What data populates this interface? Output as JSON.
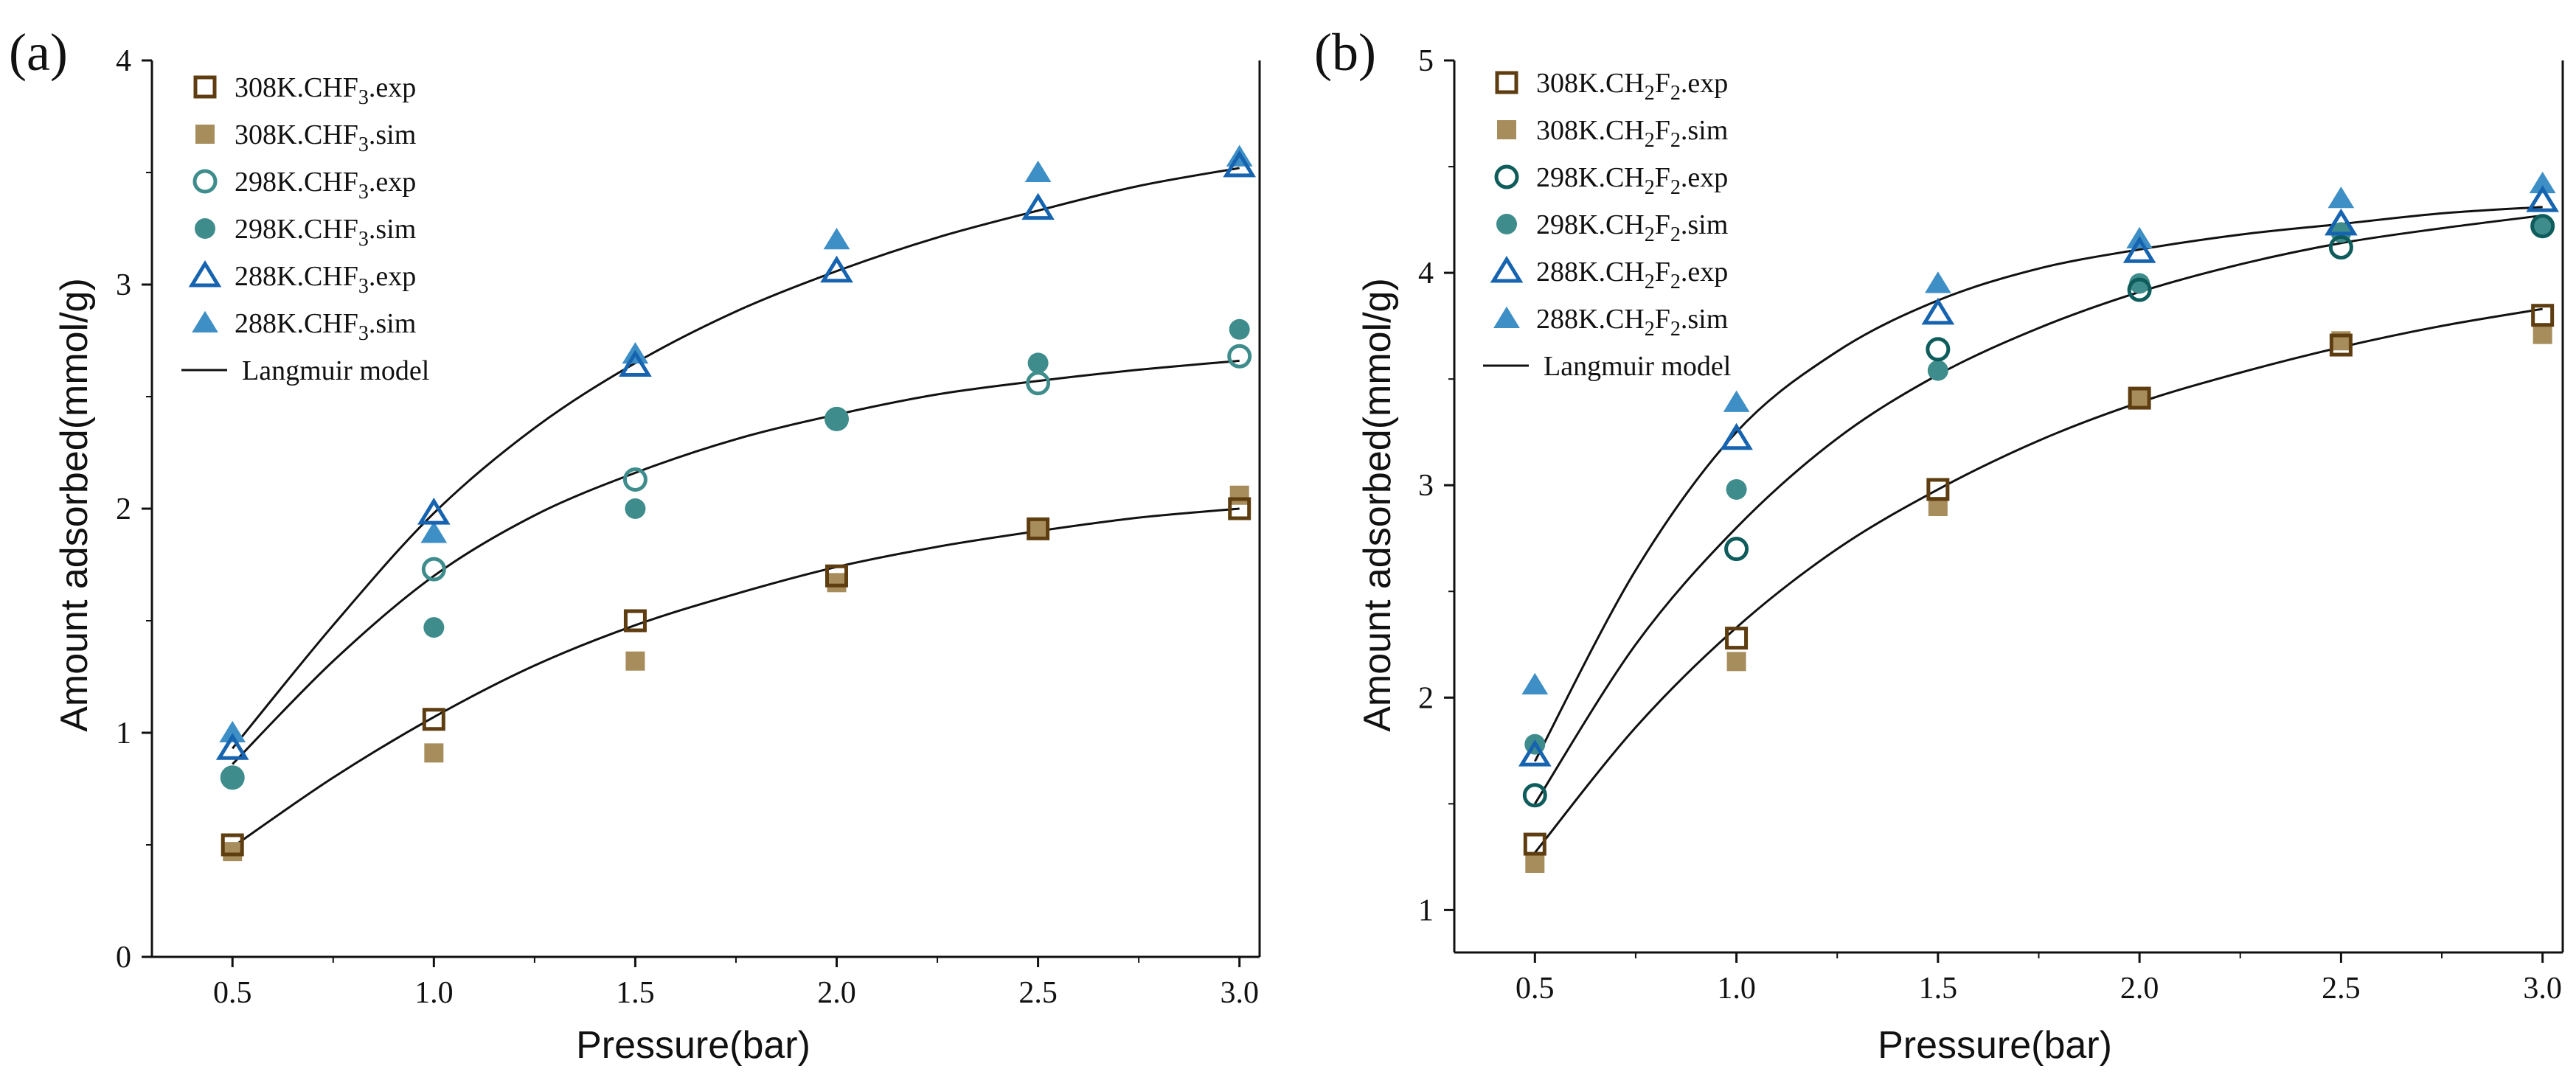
{
  "colors": {
    "exp308": "#5e3d10",
    "sim308": "#a88d5c",
    "exp298": "#0e5c5c",
    "sim298": "#3e8c8c",
    "exp288": "#1664b0",
    "sim288": "#3f8fc7",
    "model": "#111111",
    "axis": "#111111"
  },
  "chart_data": [
    {
      "type": "scatter",
      "panel_label": "(a)",
      "xlabel": "Pressure(bar)",
      "ylabel": "Amount adsorbed(mmol/g)",
      "xlim": [
        0.3,
        3.05
      ],
      "ylim": [
        0,
        4
      ],
      "xticks": [
        0.5,
        1.0,
        1.5,
        2.0,
        2.5,
        3.0
      ],
      "xtick_labels": [
        "0.5",
        "1.0",
        "1.5",
        "2.0",
        "2.5",
        "3.0"
      ],
      "yticks": [
        0,
        1,
        2,
        3,
        4
      ],
      "ytick_labels": [
        "0",
        "1",
        "2",
        "3",
        "4"
      ],
      "legend_position": "top-left",
      "series": [
        {
          "name": "308K.CHF3.exp",
          "label_main": "308K.CHF",
          "label_parts": [
            {
              "text": "3",
              "sub": true
            },
            {
              "text": ".exp",
              "sub": false
            }
          ],
          "marker": "square-open",
          "color": "exp308",
          "x": [
            0.5,
            1.0,
            1.5,
            2.0,
            2.5,
            3.0
          ],
          "y": [
            0.5,
            1.06,
            1.5,
            1.7,
            1.91,
            2.0
          ]
        },
        {
          "name": "308K.CHF3.sim",
          "label_main": "308K.CHF",
          "label_parts": [
            {
              "text": "3",
              "sub": true
            },
            {
              "text": ".sim",
              "sub": false
            }
          ],
          "marker": "square-filled",
          "color": "sim308",
          "x": [
            0.5,
            1.0,
            1.5,
            2.0,
            2.5,
            3.0
          ],
          "y": [
            0.47,
            0.91,
            1.32,
            1.67,
            1.91,
            2.06
          ]
        },
        {
          "name": "298K.CHF3.exp",
          "label_main": "298K.CHF",
          "label_parts": [
            {
              "text": "3",
              "sub": true
            },
            {
              "text": ".exp",
              "sub": false
            }
          ],
          "marker": "circle-open",
          "color": "sim298",
          "x": [
            0.5,
            1.0,
            1.5,
            2.0,
            2.5,
            3.0
          ],
          "y": [
            0.8,
            1.73,
            2.13,
            2.4,
            2.56,
            2.68
          ]
        },
        {
          "name": "298K.CHF3.sim",
          "label_main": "298K.CHF",
          "label_parts": [
            {
              "text": "3",
              "sub": true
            },
            {
              "text": ".sim",
              "sub": false
            }
          ],
          "marker": "circle-filled",
          "color": "sim298",
          "x": [
            0.5,
            1.0,
            1.5,
            2.0,
            2.5,
            3.0
          ],
          "y": [
            0.8,
            1.47,
            2.0,
            2.4,
            2.65,
            2.8
          ]
        },
        {
          "name": "288K.CHF3.exp",
          "label_main": "288K.CHF",
          "label_parts": [
            {
              "text": "3",
              "sub": true
            },
            {
              "text": ".exp",
              "sub": false
            }
          ],
          "marker": "triangle-open",
          "color": "exp288",
          "x": [
            0.5,
            1.0,
            1.5,
            2.0,
            2.5,
            3.0
          ],
          "y": [
            0.93,
            1.98,
            2.64,
            3.06,
            3.34,
            3.53
          ]
        },
        {
          "name": "288K.CHF3.sim",
          "label_main": "288K.CHF",
          "label_parts": [
            {
              "text": "3",
              "sub": true
            },
            {
              "text": ".sim",
              "sub": false
            }
          ],
          "marker": "triangle-filled",
          "color": "sim288",
          "x": [
            0.5,
            1.0,
            1.5,
            2.0,
            2.5,
            3.0
          ],
          "y": [
            1.0,
            1.89,
            2.69,
            3.2,
            3.5,
            3.57
          ]
        }
      ],
      "model_label": "Langmuir model",
      "model_curves": [
        {
          "name": "308K Langmuir",
          "x": [
            0.5,
            0.75,
            1.0,
            1.25,
            1.5,
            1.75,
            2.0,
            2.25,
            2.5,
            2.75,
            3.0
          ],
          "y": [
            0.49,
            0.8,
            1.07,
            1.3,
            1.48,
            1.62,
            1.74,
            1.83,
            1.9,
            1.96,
            2.0
          ]
        },
        {
          "name": "298K Langmuir",
          "x": [
            0.5,
            0.75,
            1.0,
            1.25,
            1.5,
            1.75,
            2.0,
            2.25,
            2.5,
            2.75,
            3.0
          ],
          "y": [
            0.86,
            1.32,
            1.7,
            1.97,
            2.16,
            2.31,
            2.42,
            2.51,
            2.57,
            2.62,
            2.66
          ]
        },
        {
          "name": "288K Langmuir",
          "x": [
            0.5,
            0.75,
            1.0,
            1.25,
            1.5,
            1.75,
            2.0,
            2.25,
            2.5,
            2.75,
            3.0
          ],
          "y": [
            0.93,
            1.48,
            1.98,
            2.36,
            2.65,
            2.88,
            3.06,
            3.21,
            3.33,
            3.44,
            3.52
          ]
        }
      ]
    },
    {
      "type": "scatter",
      "panel_label": "(b)",
      "xlabel": "Pressure(bar)",
      "ylabel": "Amount adsorbed(mmol/g)",
      "xlim": [
        0.3,
        3.05
      ],
      "ylim": [
        0.8,
        5
      ],
      "xticks": [
        0.5,
        1.0,
        1.5,
        2.0,
        2.5,
        3.0
      ],
      "xtick_labels": [
        "0.5",
        "1.0",
        "1.5",
        "2.0",
        "2.5",
        "3.0"
      ],
      "yticks": [
        1,
        2,
        3,
        4,
        5
      ],
      "ytick_labels": [
        "1",
        "2",
        "3",
        "4",
        "5"
      ],
      "legend_position": "top-left",
      "series": [
        {
          "name": "308K.CH2F2.exp",
          "label_main": "308K.CH",
          "label_parts": [
            {
              "text": "2",
              "sub": true
            },
            {
              "text": "F",
              "sub": false
            },
            {
              "text": "2",
              "sub": true
            },
            {
              "text": ".exp",
              "sub": false
            }
          ],
          "marker": "square-open",
          "color": "exp308",
          "x": [
            0.5,
            1.0,
            1.5,
            2.0,
            2.5,
            3.0
          ],
          "y": [
            1.31,
            2.28,
            2.98,
            3.41,
            3.66,
            3.8
          ]
        },
        {
          "name": "308K.CH2F2.sim",
          "label_main": "308K.CH",
          "label_parts": [
            {
              "text": "2",
              "sub": true
            },
            {
              "text": "F",
              "sub": false
            },
            {
              "text": "2",
              "sub": true
            },
            {
              "text": ".sim",
              "sub": false
            }
          ],
          "marker": "square-filled",
          "color": "sim308",
          "x": [
            0.5,
            1.0,
            1.5,
            2.0,
            2.5,
            3.0
          ],
          "y": [
            1.22,
            2.17,
            2.9,
            3.41,
            3.68,
            3.71
          ]
        },
        {
          "name": "298K.CH2F2.exp",
          "label_main": "298K.CH",
          "label_parts": [
            {
              "text": "2",
              "sub": true
            },
            {
              "text": "F",
              "sub": false
            },
            {
              "text": "2",
              "sub": true
            },
            {
              "text": ".exp",
              "sub": false
            }
          ],
          "marker": "circle-open",
          "color": "exp298",
          "x": [
            0.5,
            1.0,
            1.5,
            2.0,
            2.5,
            3.0
          ],
          "y": [
            1.54,
            2.7,
            3.64,
            3.92,
            4.12,
            4.22
          ]
        },
        {
          "name": "298K.CH2F2.sim",
          "label_main": "298K.CH",
          "label_parts": [
            {
              "text": "2",
              "sub": true
            },
            {
              "text": "F",
              "sub": false
            },
            {
              "text": "2",
              "sub": true
            },
            {
              "text": ".sim",
              "sub": false
            }
          ],
          "marker": "circle-filled",
          "color": "sim298",
          "x": [
            0.5,
            1.0,
            1.5,
            2.0,
            2.5,
            3.0
          ],
          "y": [
            1.78,
            2.98,
            3.54,
            3.95,
            4.19,
            4.22
          ]
        },
        {
          "name": "288K.CH2F2.exp",
          "label_main": "288K.CH",
          "label_parts": [
            {
              "text": "2",
              "sub": true
            },
            {
              "text": "F",
              "sub": false
            },
            {
              "text": "2",
              "sub": true
            },
            {
              "text": ".exp",
              "sub": false
            }
          ],
          "marker": "triangle-open",
          "color": "exp288",
          "x": [
            0.5,
            1.0,
            1.5,
            2.0,
            2.5,
            3.0
          ],
          "y": [
            1.73,
            3.22,
            3.81,
            4.1,
            4.23,
            4.34
          ]
        },
        {
          "name": "288K.CH2F2.sim",
          "label_main": "288K.CH",
          "label_parts": [
            {
              "text": "2",
              "sub": true
            },
            {
              "text": "F",
              "sub": false
            },
            {
              "text": "2",
              "sub": true
            },
            {
              "text": ".sim",
              "sub": false
            }
          ],
          "marker": "triangle-filled",
          "color": "sim288",
          "x": [
            0.5,
            1.0,
            1.5,
            2.0,
            2.5,
            3.0
          ],
          "y": [
            2.06,
            3.39,
            3.95,
            4.16,
            4.35,
            4.42
          ]
        }
      ],
      "model_label": "Langmuir model",
      "model_curves": [
        {
          "name": "308K Langmuir",
          "x": [
            0.5,
            0.75,
            1.0,
            1.25,
            1.5,
            1.75,
            2.0,
            2.25,
            2.5,
            2.75,
            3.0
          ],
          "y": [
            1.27,
            1.86,
            2.33,
            2.7,
            2.98,
            3.21,
            3.39,
            3.53,
            3.65,
            3.75,
            3.83
          ]
        },
        {
          "name": "298K Langmuir",
          "x": [
            0.5,
            0.75,
            1.0,
            1.25,
            1.5,
            1.75,
            2.0,
            2.25,
            2.5,
            2.75,
            3.0
          ],
          "y": [
            1.5,
            2.25,
            2.8,
            3.22,
            3.52,
            3.74,
            3.91,
            4.04,
            4.14,
            4.21,
            4.27
          ]
        },
        {
          "name": "288K Langmuir",
          "x": [
            0.5,
            0.75,
            1.0,
            1.25,
            1.5,
            1.75,
            2.0,
            2.25,
            2.5,
            2.75,
            3.0
          ],
          "y": [
            1.7,
            2.6,
            3.25,
            3.63,
            3.87,
            4.02,
            4.11,
            4.18,
            4.23,
            4.28,
            4.31
          ]
        }
      ]
    }
  ]
}
